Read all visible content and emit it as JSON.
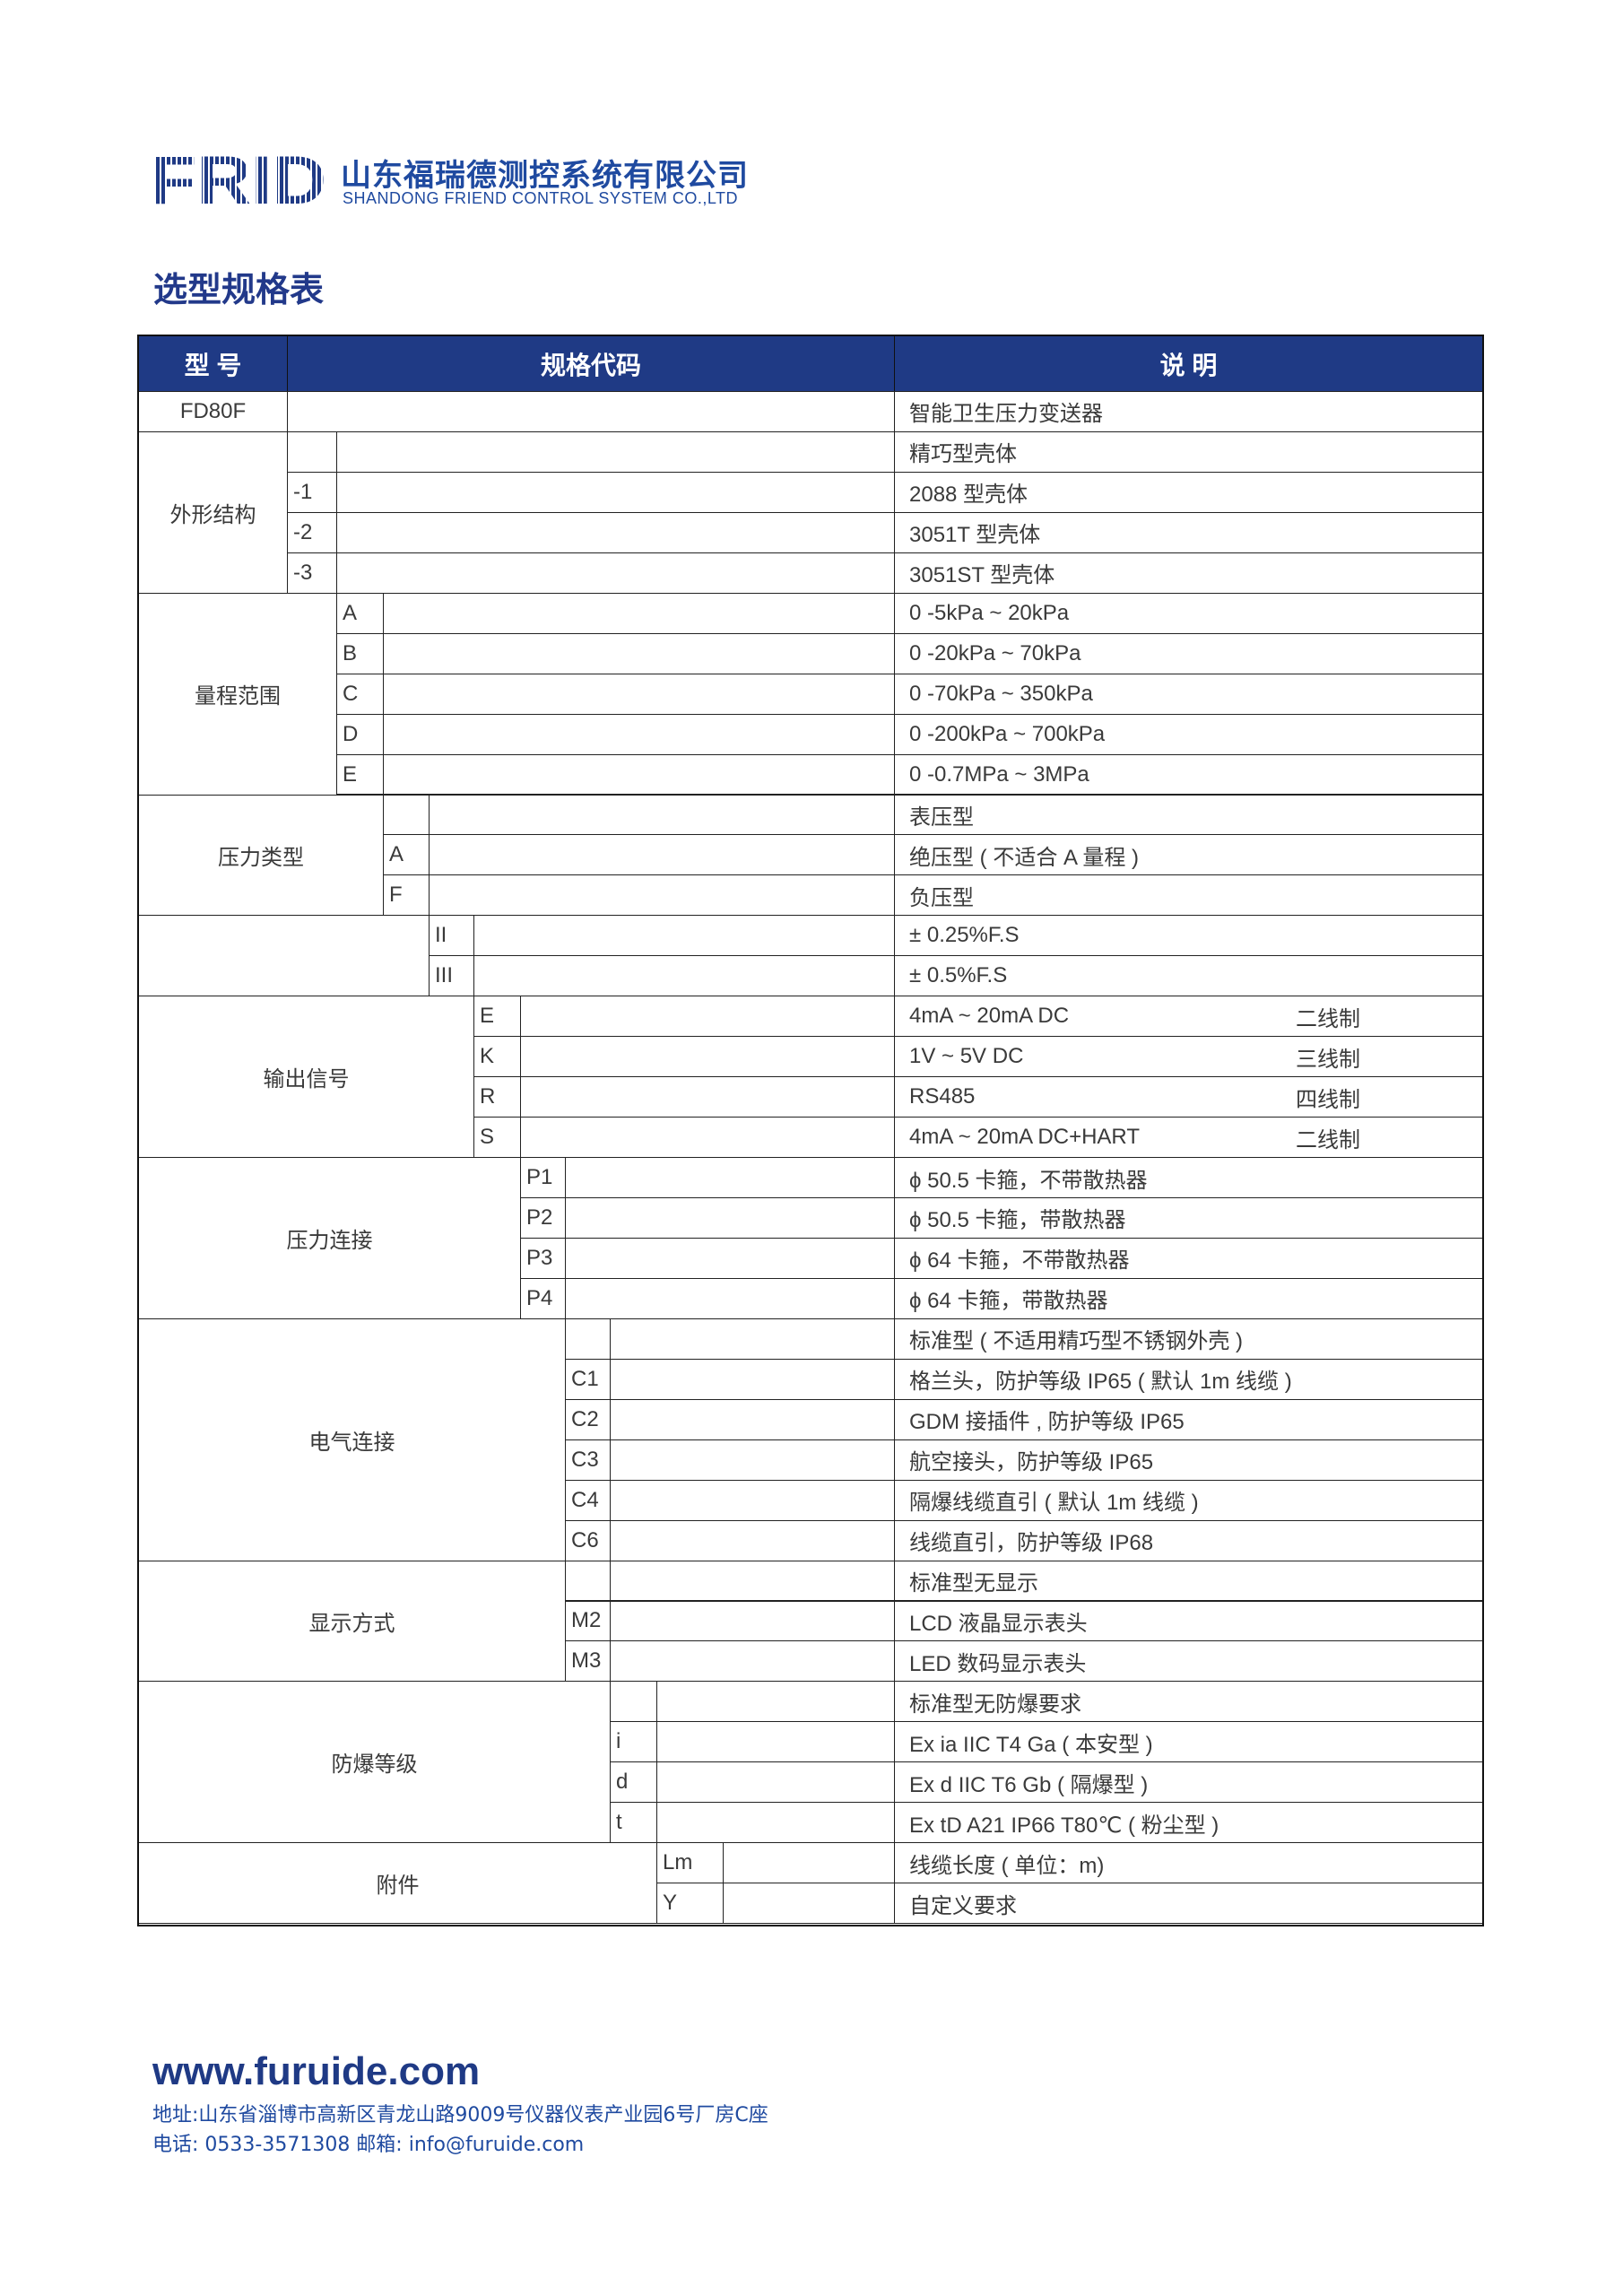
{
  "header": {
    "logo_text": "FRID",
    "company_cn": "山东福瑞德测控系统有限公司",
    "company_en": "SHANDONG FRIEND CONTROL SYSTEM CO.,LTD"
  },
  "title": "选型规格表",
  "colors": {
    "brand_blue": "#1f3a85",
    "text": "#3a3a3a"
  },
  "table": {
    "headers": {
      "model": "型 号",
      "code": "规格代码",
      "desc": "说 明"
    },
    "groups": [
      {
        "label": "FD80F",
        "rows": [
          {
            "code": "",
            "desc": "智能卫生压力变送器"
          }
        ]
      },
      {
        "label": "外形结构",
        "rows": [
          {
            "code": "",
            "desc": "精巧型壳体"
          },
          {
            "code": "-1",
            "desc": "2088 型壳体"
          },
          {
            "code": "-2",
            "desc": "3051T 型壳体"
          },
          {
            "code": "-3",
            "desc": "3051ST 型壳体"
          }
        ]
      },
      {
        "label": "量程范围",
        "rows": [
          {
            "code": "A",
            "desc": "0 -5kPa ~ 20kPa"
          },
          {
            "code": "B",
            "desc": "0 -20kPa ~ 70kPa"
          },
          {
            "code": "C",
            "desc": "0 -70kPa ~ 350kPa"
          },
          {
            "code": "D",
            "desc": "0 -200kPa ~ 700kPa"
          },
          {
            "code": "E",
            "desc": "0 -0.7MPa ~ 3MPa"
          }
        ]
      },
      {
        "label": "压力类型",
        "rows": [
          {
            "code": "",
            "desc": "表压型"
          },
          {
            "code": "A",
            "desc": "绝压型 ( 不适合 A 量程 )"
          },
          {
            "code": "F",
            "desc": "负压型"
          }
        ]
      },
      {
        "label": "",
        "rows": [
          {
            "code": "II",
            "desc": "± 0.25%F.S"
          },
          {
            "code": "III",
            "desc": "± 0.5%F.S"
          }
        ]
      },
      {
        "label": "输出信号",
        "rows": [
          {
            "code": "E",
            "desc": "4mA ~ 20mA DC",
            "note": "二线制"
          },
          {
            "code": "K",
            "desc": "1V ~ 5V DC",
            "note": "三线制"
          },
          {
            "code": "R",
            "desc": "RS485",
            "note": "四线制"
          },
          {
            "code": "S",
            "desc": "4mA ~ 20mA DC+HART",
            "note": "二线制"
          }
        ]
      },
      {
        "label": "压力连接",
        "rows": [
          {
            "code": "P1",
            "desc": "ϕ 50.5 卡箍，不带散热器"
          },
          {
            "code": "P2",
            "desc": "ϕ 50.5 卡箍，带散热器"
          },
          {
            "code": "P3",
            "desc": "ϕ 64 卡箍，不带散热器"
          },
          {
            "code": "P4",
            "desc": "ϕ 64 卡箍，带散热器"
          }
        ]
      },
      {
        "label": "电气连接",
        "rows": [
          {
            "code": "",
            "desc": "标准型 ( 不适用精巧型不锈钢外壳 )"
          },
          {
            "code": "C1",
            "desc": "格兰头，防护等级 IP65 ( 默认 1m 线缆 )"
          },
          {
            "code": "C2",
            "desc": "GDM 接插件 , 防护等级 IP65"
          },
          {
            "code": "C3",
            "desc": "航空接头，防护等级 IP65"
          },
          {
            "code": "C4",
            "desc": "隔爆线缆直引 ( 默认 1m 线缆 )"
          },
          {
            "code": "C6",
            "desc": "线缆直引，防护等级 IP68"
          }
        ]
      },
      {
        "label": "显示方式",
        "rows": [
          {
            "code": "",
            "desc": "标准型无显示"
          },
          {
            "code": "M2",
            "desc": "LCD 液晶显示表头"
          },
          {
            "code": "M3",
            "desc": "LED 数码显示表头"
          }
        ]
      },
      {
        "label": "防爆等级",
        "rows": [
          {
            "code": "",
            "desc": "标准型无防爆要求"
          },
          {
            "code": "i",
            "desc": "Ex ia IIC T4 Ga  ( 本安型 )"
          },
          {
            "code": "d",
            "desc": "Ex d IIC T6 Gb   ( 隔爆型 )"
          },
          {
            "code": "t",
            "desc": "Ex tD A21 IP66 T80℃ ( 粉尘型 )"
          }
        ]
      },
      {
        "label": "附件",
        "rows": [
          {
            "code": "Lm",
            "desc": "线缆长度 ( 单位：m)"
          },
          {
            "code": "Y",
            "desc": "自定义要求"
          }
        ]
      }
    ]
  },
  "footer": {
    "website": "www.furuide.com",
    "address": "地址:山东省淄博市高新区青龙山路9009号仪器仪表产业园6号厂房C座",
    "contact": "电话: 0533-3571308 邮箱: info@furuide.com"
  }
}
